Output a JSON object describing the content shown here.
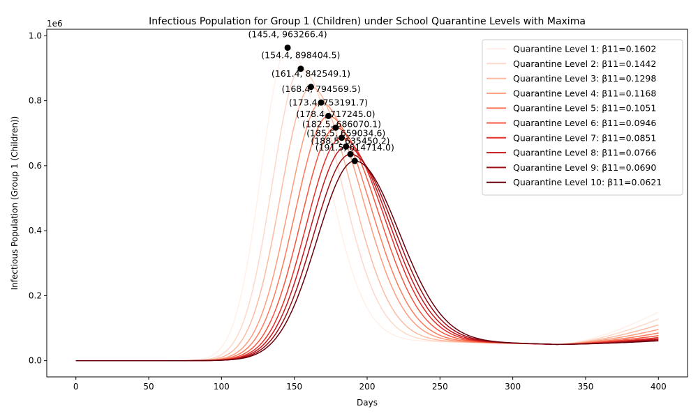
{
  "chart_data": {
    "type": "line",
    "title": "Infectious Population for Group 1 (Children) under School Quarantine Levels with Maxima",
    "xlabel": "Days",
    "ylabel": "Infectious Population (Group 1 (Children))",
    "y_offset_label": "1e6",
    "xlim": [
      -20,
      420
    ],
    "ylim": [
      -50000,
      1020000
    ],
    "x_ticks": [
      0,
      50,
      100,
      150,
      200,
      250,
      300,
      350,
      400
    ],
    "x_tick_labels": [
      "0",
      "50",
      "100",
      "150",
      "200",
      "250",
      "300",
      "350",
      "400"
    ],
    "y_ticks": [
      0,
      200000,
      400000,
      600000,
      800000,
      1000000
    ],
    "y_tick_labels": [
      "0.0",
      "0.2",
      "0.4",
      "0.6",
      "0.8",
      "1.0"
    ],
    "grid": false,
    "legend_position": "top-right",
    "x_range": [
      0,
      400
    ],
    "series": [
      {
        "name": "Quarantine Level 1: β11=0.1602",
        "color": "#fff0e9",
        "peak_x": 145.4,
        "peak_y": 963266.4,
        "end_y": 150000
      },
      {
        "name": "Quarantine Level 2: β11=0.1442",
        "color": "#fdd9c9",
        "peak_x": 154.4,
        "peak_y": 898404.5,
        "end_y": 128000
      },
      {
        "name": "Quarantine Level 3: β11=0.1298",
        "color": "#fcbba1",
        "peak_x": 161.4,
        "peak_y": 842549.1,
        "end_y": 110000
      },
      {
        "name": "Quarantine Level 4: β11=0.1168",
        "color": "#fc9c7d",
        "peak_x": 168.4,
        "peak_y": 794569.5,
        "end_y": 96000
      },
      {
        "name": "Quarantine Level 5: β11=0.1051",
        "color": "#fb7b5b",
        "peak_x": 173.4,
        "peak_y": 753191.7,
        "end_y": 85000
      },
      {
        "name": "Quarantine Level 6: β11=0.0946",
        "color": "#f5553c",
        "peak_x": 178.4,
        "peak_y": 717245.0,
        "end_y": 77000
      },
      {
        "name": "Quarantine Level 7: β11=0.0851",
        "color": "#e32f27",
        "peak_x": 182.5,
        "peak_y": 686070.1,
        "end_y": 71000
      },
      {
        "name": "Quarantine Level 8: β11=0.0766",
        "color": "#c4161c",
        "peak_x": 185.5,
        "peak_y": 659034.6,
        "end_y": 67000
      },
      {
        "name": "Quarantine Level 9: β11=0.0690",
        "color": "#9e0d14",
        "peak_x": 188.5,
        "peak_y": 635450.2,
        "end_y": 64000
      },
      {
        "name": "Quarantine Level 10: β11=0.0621",
        "color": "#67000d",
        "peak_x": 191.5,
        "peak_y": 614714.0,
        "end_y": 61000
      }
    ],
    "annotations": [
      {
        "text": "(145.4, 963266.4)",
        "x": 145.4,
        "y": 963266.4
      },
      {
        "text": "(154.4, 898404.5)",
        "x": 154.4,
        "y": 898404.5
      },
      {
        "text": "(161.4, 842549.1)",
        "x": 161.4,
        "y": 842549.1
      },
      {
        "text": "(168.4, 794569.5)",
        "x": 168.4,
        "y": 794569.5
      },
      {
        "text": "(173.4, 753191.7)",
        "x": 173.4,
        "y": 753191.7
      },
      {
        "text": "(178.4, 717245.0)",
        "x": 178.4,
        "y": 717245.0
      },
      {
        "text": "(182.5, 686070.1)",
        "x": 182.5,
        "y": 686070.1
      },
      {
        "text": "(185.5, 659034.6)",
        "x": 185.5,
        "y": 659034.6
      },
      {
        "text": "(188.5, 635450.2)",
        "x": 188.5,
        "y": 635450.2
      },
      {
        "text": "(191.5, 614714.0)",
        "x": 191.5,
        "y": 614714.0
      }
    ]
  }
}
